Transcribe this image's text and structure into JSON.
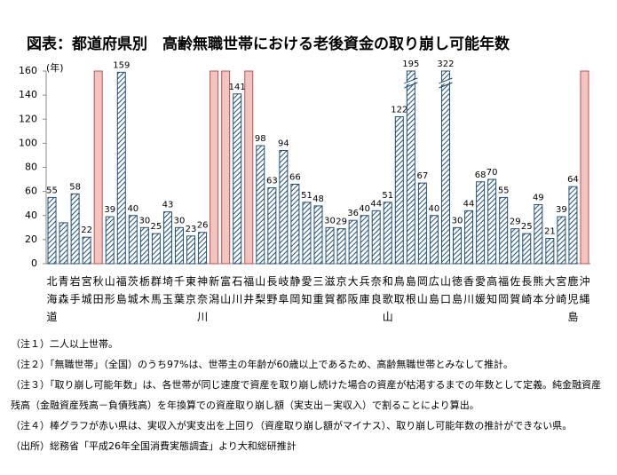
{
  "chart_data": {
    "type": "bar",
    "title": "図表：都道府県別　高齢無職世帯における老後資金の取り崩し可能年数",
    "y_unit": "(年)",
    "categories": [
      "北海道",
      "青森",
      "岩手",
      "宮城",
      "秋田",
      "山形",
      "福島",
      "茨城",
      "栃木",
      "群馬",
      "埼玉",
      "千葉",
      "東京",
      "神奈川",
      "新潟",
      "富山",
      "石川",
      "福井",
      "山梨",
      "長野",
      "岐阜",
      "静岡",
      "愛知",
      "三重",
      "滋賀",
      "京都",
      "大阪",
      "兵庫",
      "奈良",
      "和歌山",
      "鳥取",
      "島根",
      "岡山",
      "広島",
      "山口",
      "徳島",
      "香川",
      "愛媛",
      "高知",
      "福岡",
      "佐賀",
      "長崎",
      "熊本",
      "大分",
      "宮崎",
      "鹿児島",
      "沖縄"
    ],
    "values": [
      55,
      34,
      58,
      22,
      null,
      39,
      159,
      40,
      30,
      25,
      43,
      30,
      23,
      26,
      null,
      null,
      141,
      null,
      98,
      63,
      94,
      66,
      51,
      48,
      30,
      29,
      36,
      40,
      44,
      51,
      122,
      195,
      67,
      40,
      322,
      30,
      44,
      68,
      70,
      55,
      29,
      25,
      49,
      21,
      39,
      64,
      null
    ],
    "value_labels": [
      "55",
      null,
      "58",
      "22",
      null,
      "39",
      "159",
      "40",
      "30",
      "25",
      "43",
      "30",
      "23",
      "26",
      null,
      null,
      "141",
      null,
      "98",
      "63",
      "94",
      "66",
      "51",
      "48",
      "30",
      "29",
      "36",
      "40",
      "44",
      "51",
      "122",
      "195",
      "67",
      "40",
      "322",
      "30",
      "44",
      "68",
      "70",
      "55",
      "29",
      "25",
      "49",
      "21",
      "39",
      "64",
      null
    ],
    "color": "#1f4e79",
    "null_bar_color": "#c0504d",
    "ylim": [
      0,
      160
    ],
    "yticks": [
      0,
      20,
      40,
      60,
      80,
      100,
      120,
      140,
      160
    ],
    "notes": [
      "（注１）二人以上世帯。",
      "（注２）「無職世帯」（全国）のうち97%は、世帯主の年齢が60歳以上であるため、高齢無職世帯とみなして推計。",
      "（注３）「取り崩し可能年数」は、各世帯が同じ速度で資産を取り崩し続けた場合の資産が枯渇するまでの年数として定義。純金融資産残高（金融資産残高－負債残高）を年換算での資産取り崩し額（実支出－実収入）で割ることにより算出。",
      "（注４）棒グラフが赤い県は、実収入が実支出を上回り（資産取り崩し額がマイナス）、取り崩し可能年数の推計ができない県。",
      "（出所）総務省「平成26年全国消費実態調査」より大和総研推計"
    ]
  }
}
